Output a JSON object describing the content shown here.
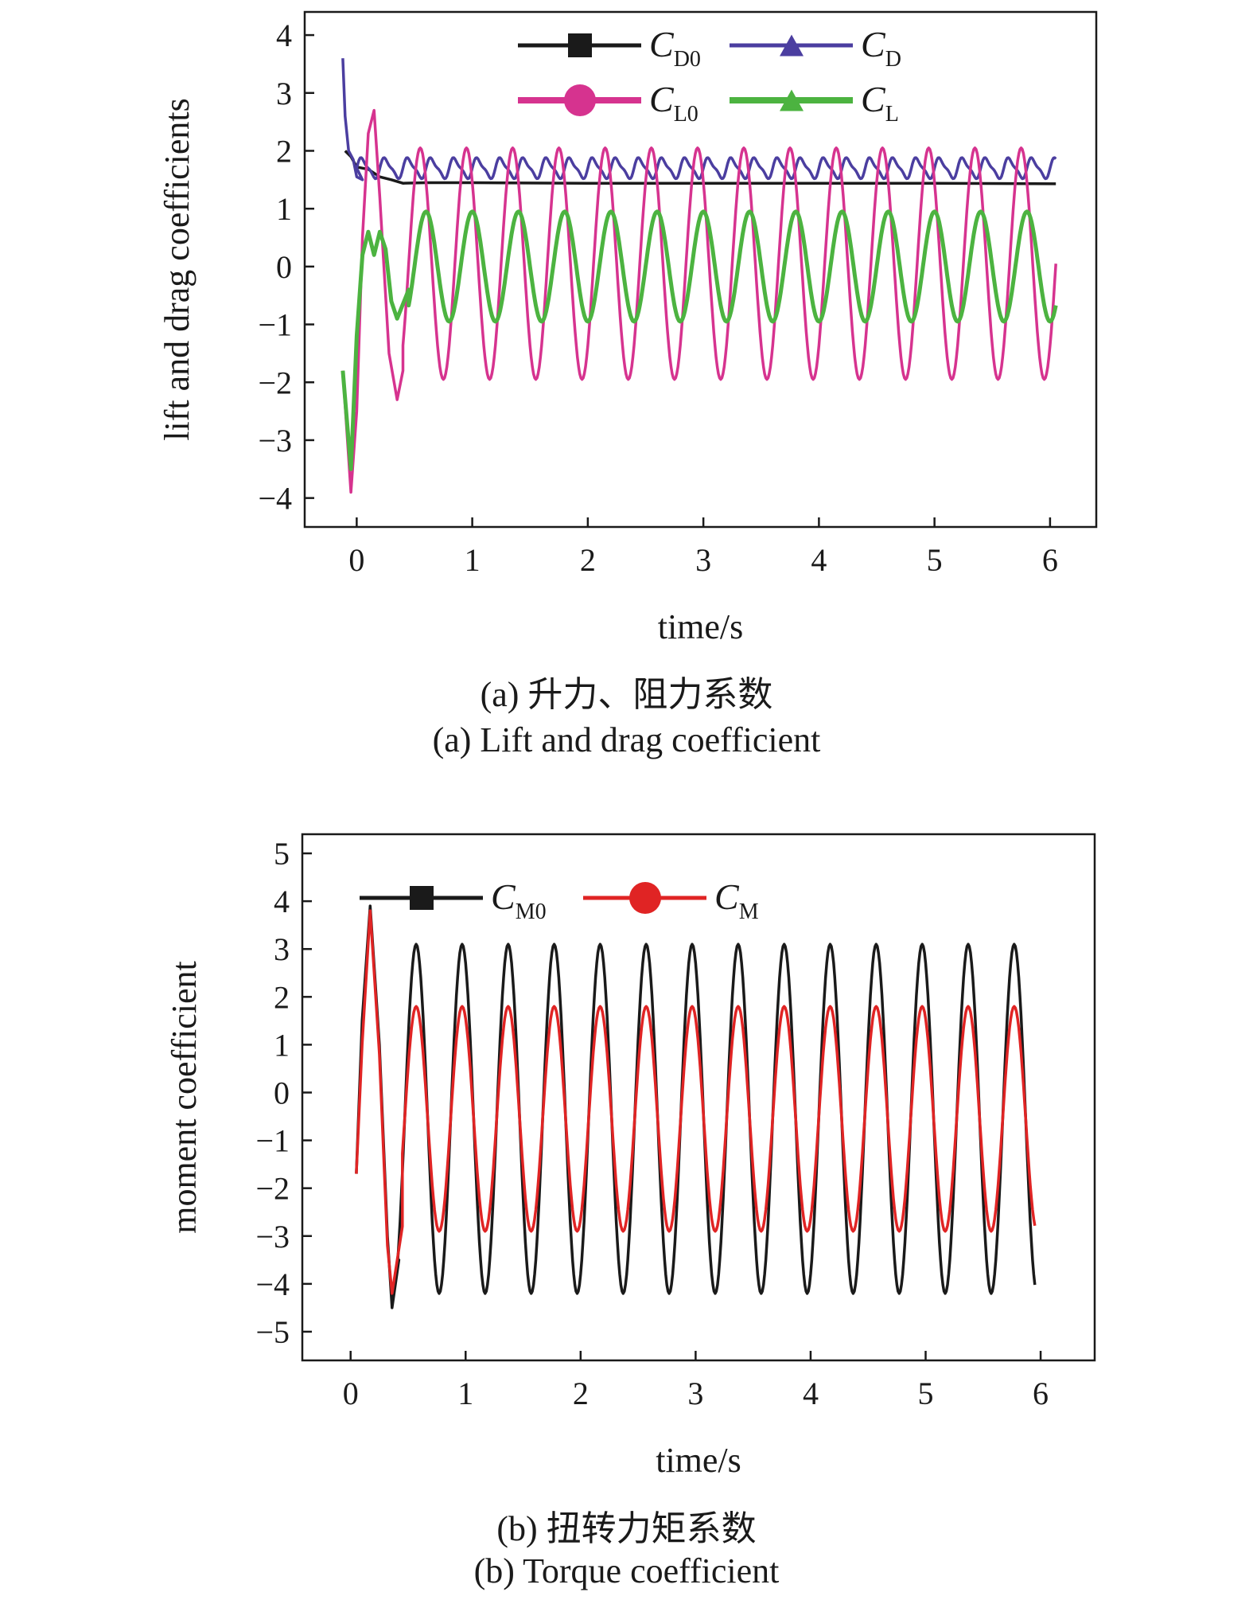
{
  "chart_data": [
    {
      "type": "line",
      "xlabel": "time/s",
      "ylabel": "lift and drag coefficients",
      "xlim": [
        -0.45,
        6.4
      ],
      "ylim": [
        -4.5,
        4.4
      ],
      "xticks": [
        0,
        1,
        2,
        3,
        4,
        5,
        6
      ],
      "yticks": [
        4,
        3,
        2,
        1,
        0,
        -1,
        -2,
        -3,
        -4
      ],
      "legend_position": "top-right",
      "series": [
        {
          "name": "C_D0",
          "label_main": "C",
          "label_sub": "D0",
          "color": "#1a1a1a",
          "marker": "square",
          "points": [
            [
              -0.1,
              2.0
            ],
            [
              -0.05,
              1.9
            ],
            [
              0,
              1.72
            ],
            [
              0.1,
              1.68
            ],
            [
              0.2,
              1.55
            ],
            [
              0.3,
              1.5
            ],
            [
              0.4,
              1.44
            ],
            [
              0.6,
              1.45
            ],
            [
              1.0,
              1.45
            ],
            [
              2.0,
              1.44
            ],
            [
              3.0,
              1.44
            ],
            [
              4.0,
              1.44
            ],
            [
              5.0,
              1.44
            ],
            [
              6.05,
              1.43
            ]
          ]
        },
        {
          "name": "C_D",
          "label_main": "C",
          "label_sub": "D",
          "color": "#4b3ea0",
          "marker": "triangle",
          "base": 1.7,
          "amp": 0.16,
          "period": 0.2,
          "start": 0.0,
          "end": 6.05,
          "transient": [
            [
              -0.12,
              3.6
            ],
            [
              -0.1,
              2.6
            ],
            [
              -0.07,
              2.0
            ],
            [
              -0.03,
              1.85
            ],
            [
              0.0,
              1.55
            ],
            [
              0.05,
              1.5
            ]
          ]
        },
        {
          "name": "C_L0",
          "label_main": "C",
          "label_sub": "L0",
          "color": "#d6338f",
          "marker": "circle",
          "amp": 2.0,
          "center": 0.05,
          "period": 0.4,
          "phase_x": 0.55,
          "start": 0.4,
          "end": 6.05,
          "transient": [
            [
              -0.12,
              -1.8
            ],
            [
              -0.05,
              -3.9
            ],
            [
              0.0,
              -2.5
            ],
            [
              0.05,
              0.5
            ],
            [
              0.1,
              2.3
            ],
            [
              0.15,
              2.7
            ],
            [
              0.2,
              1.2
            ],
            [
              0.28,
              -1.5
            ],
            [
              0.35,
              -2.3
            ],
            [
              0.4,
              -1.8
            ]
          ]
        },
        {
          "name": "C_L",
          "label_main": "C",
          "label_sub": "L",
          "color": "#4cb340",
          "marker": "triangle",
          "amp": 0.95,
          "center": 0.0,
          "period": 0.4,
          "phase_x": 0.6,
          "start": 0.45,
          "end": 6.05,
          "transient": [
            [
              -0.12,
              -1.8
            ],
            [
              -0.05,
              -3.5
            ],
            [
              0.0,
              -1.2
            ],
            [
              0.05,
              0.2
            ],
            [
              0.1,
              0.6
            ],
            [
              0.15,
              0.2
            ],
            [
              0.2,
              0.6
            ],
            [
              0.25,
              0.3
            ],
            [
              0.3,
              -0.6
            ],
            [
              0.35,
              -0.9
            ],
            [
              0.45,
              -0.4
            ]
          ]
        }
      ]
    },
    {
      "type": "line",
      "xlabel": "time/s",
      "ylabel": "moment coefficient",
      "xlim": [
        -0.42,
        6.47
      ],
      "ylim": [
        -5.6,
        5.4
      ],
      "xticks": [
        0,
        1,
        2,
        3,
        4,
        5,
        6
      ],
      "yticks": [
        5,
        4,
        3,
        2,
        1,
        0,
        -1,
        -2,
        -3,
        -4,
        -5
      ],
      "legend_position": "top-left",
      "series": [
        {
          "name": "C_M0",
          "label_main": "C",
          "label_sub": "M0",
          "color": "#1a1a1a",
          "marker": "square",
          "amp": 3.65,
          "center": -0.55,
          "period": 0.4,
          "phase_x": 0.57,
          "start": 0.4,
          "end": 5.95,
          "transient": [
            [
              0.05,
              -1.7
            ],
            [
              0.1,
              1.5
            ],
            [
              0.17,
              3.9
            ],
            [
              0.25,
              1.0
            ],
            [
              0.32,
              -3.0
            ],
            [
              0.36,
              -4.5
            ],
            [
              0.42,
              -3.5
            ]
          ]
        },
        {
          "name": "C_M",
          "label_main": "C",
          "label_sub": "M",
          "color": "#e02424",
          "marker": "circle",
          "amp": 2.35,
          "center": -0.55,
          "period": 0.4,
          "phase_x": 0.57,
          "start": 0.45,
          "end": 5.95,
          "transient": [
            [
              0.05,
              -1.7
            ],
            [
              0.1,
              1.0
            ],
            [
              0.17,
              3.8
            ],
            [
              0.25,
              0.8
            ],
            [
              0.32,
              -3.2
            ],
            [
              0.36,
              -4.2
            ],
            [
              0.45,
              -2.8
            ]
          ]
        }
      ]
    }
  ],
  "captions": {
    "a_zh": "(a) 升力、阻力系数",
    "a_en": "(a) Lift and drag coefficient",
    "b_zh": "(b) 扭转力矩系数",
    "b_en": "(b) Torque coefficient"
  }
}
